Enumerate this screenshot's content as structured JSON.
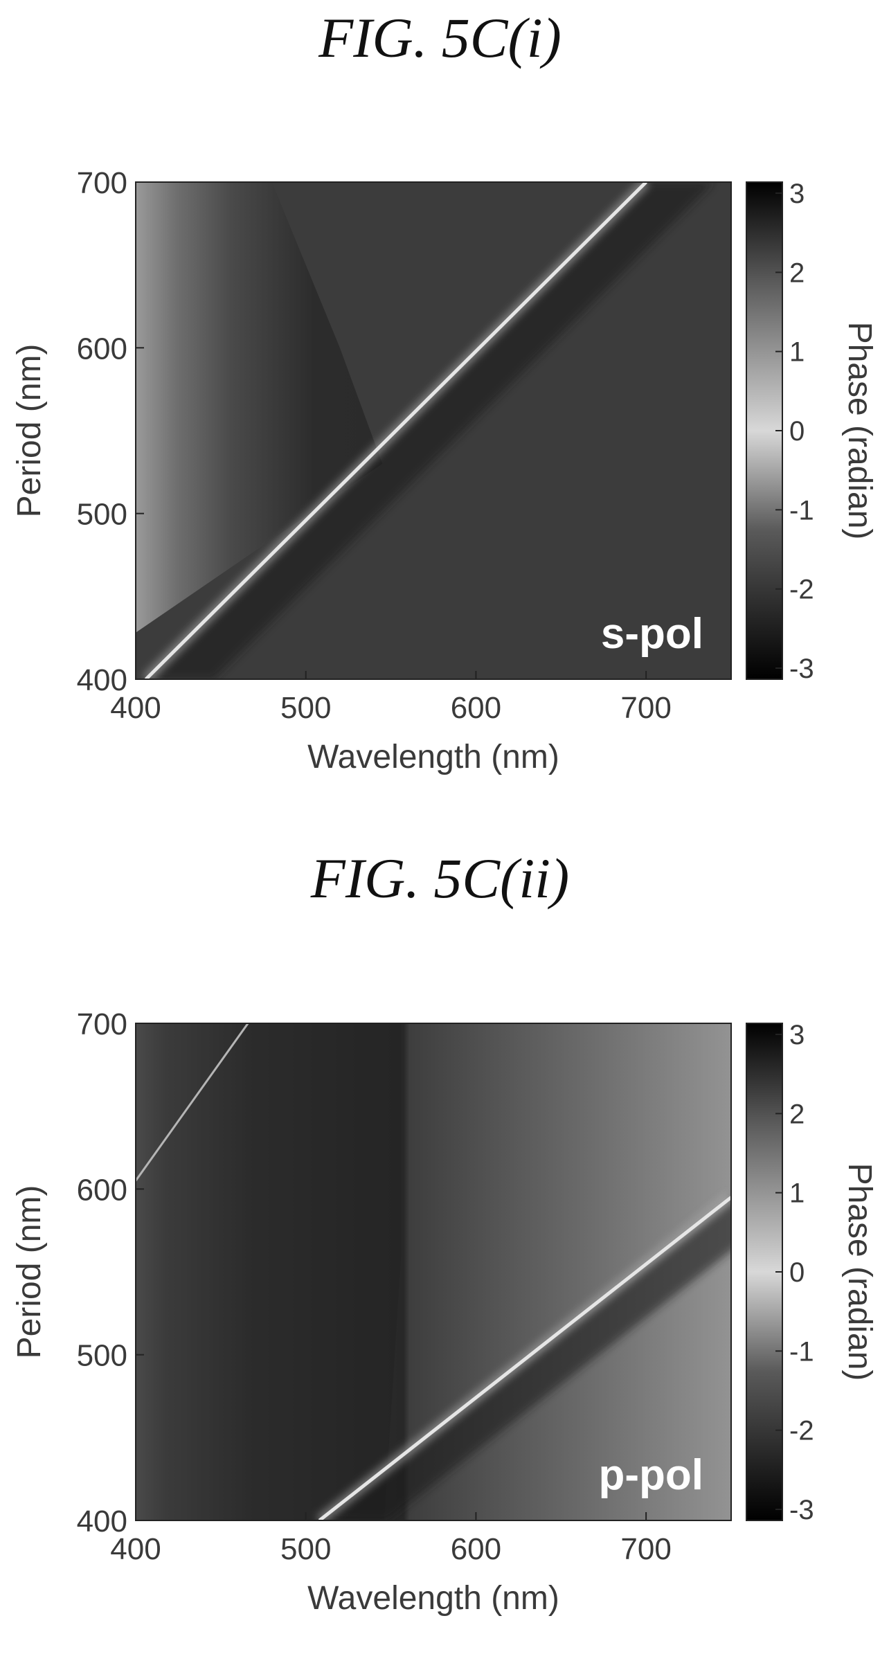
{
  "figures": [
    {
      "title": "FIG. 5C(i)",
      "chart_data": {
        "type": "heatmap",
        "xlabel": "Wavelength (nm)",
        "ylabel": "Period (nm)",
        "colorbar_label": "Phase (radian)",
        "annotation": "s-pol",
        "xlim": [
          400,
          750
        ],
        "ylim": [
          400,
          700
        ],
        "clim": [
          -3.14,
          3.14
        ],
        "x_ticks": [
          400,
          500,
          600,
          700
        ],
        "y_ticks": [
          400,
          500,
          600,
          700
        ],
        "colorbar_ticks": [
          -3,
          -2,
          -1,
          0,
          1,
          2,
          3
        ],
        "colormap": "grayscale",
        "resonance_line": {
          "x": [
            406,
            700
          ],
          "y": [
            400,
            700
          ]
        },
        "region_boundary": {
          "x": [
            360,
            545,
            520,
            480
          ],
          "y": [
            400,
            530,
            600,
            700
          ]
        }
      }
    },
    {
      "title": "FIG. 5C(ii)",
      "chart_data": {
        "type": "heatmap",
        "xlabel": "Wavelength (nm)",
        "ylabel": "Period (nm)",
        "colorbar_label": "Phase (radian)",
        "annotation": "p-pol",
        "xlim": [
          400,
          750
        ],
        "ylim": [
          400,
          700
        ],
        "clim": [
          -3.14,
          3.14
        ],
        "x_ticks": [
          400,
          500,
          600,
          700
        ],
        "y_ticks": [
          400,
          500,
          600,
          700
        ],
        "colorbar_ticks": [
          -3,
          -2,
          -1,
          0,
          1,
          2,
          3
        ],
        "colormap": "grayscale",
        "resonance_line": {
          "x": [
            508,
            750
          ],
          "y": [
            400,
            595
          ]
        },
        "secondary_line": {
          "x": [
            400,
            466
          ],
          "y": [
            605,
            700
          ]
        },
        "region_boundary": {
          "x": [
            546,
            556,
            556
          ],
          "y": [
            400,
            560,
            700
          ]
        }
      }
    }
  ]
}
